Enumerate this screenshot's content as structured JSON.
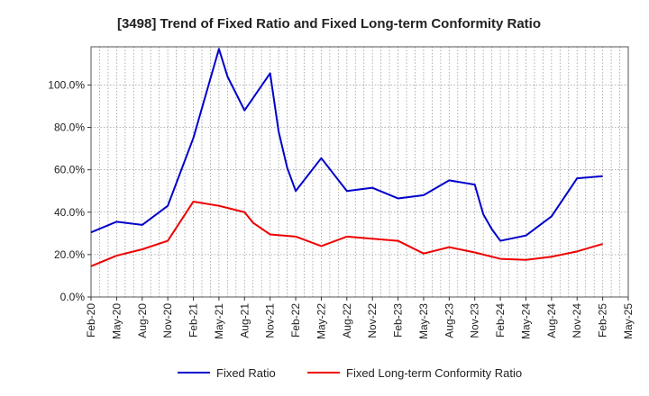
{
  "chart_data": {
    "type": "line",
    "title": "[3498]  Trend of Fixed Ratio and Fixed Long-term Conformity Ratio",
    "xlabel": "",
    "ylabel": "",
    "x_ticks": [
      "Feb-20",
      "May-20",
      "Aug-20",
      "Nov-20",
      "Feb-21",
      "May-21",
      "Aug-21",
      "Nov-21",
      "Feb-22",
      "May-22",
      "Aug-22",
      "Nov-22",
      "Feb-23",
      "May-23",
      "Aug-23",
      "Nov-23",
      "Feb-24",
      "May-24",
      "Aug-24",
      "Nov-24",
      "Feb-25",
      "May-25"
    ],
    "y_ticks": [
      "0.0%",
      "20.0%",
      "40.0%",
      "60.0%",
      "80.0%",
      "100.0%"
    ],
    "ylim": [
      0,
      118
    ],
    "grid": true,
    "legend_position": "bottom",
    "series": [
      {
        "name": "Fixed Ratio",
        "color": "#0000cc",
        "x": [
          "2020-02",
          "2020-05",
          "2020-08",
          "2020-11",
          "2021-02",
          "2021-05",
          "2021-06",
          "2021-08",
          "2021-11",
          "2021-12",
          "2022-01",
          "2022-02",
          "2022-05",
          "2022-08",
          "2022-11",
          "2023-02",
          "2023-05",
          "2023-08",
          "2023-11",
          "2023-12",
          "2024-01",
          "2024-02",
          "2024-05",
          "2024-08",
          "2024-11",
          "2025-02"
        ],
        "values": [
          30.5,
          35.5,
          34.0,
          43.0,
          75.0,
          117.0,
          104.0,
          88.0,
          105.5,
          78.0,
          61.0,
          50.0,
          65.5,
          50.0,
          51.5,
          46.5,
          48.0,
          55.0,
          53.0,
          39.0,
          32.0,
          26.5,
          29.0,
          38.0,
          56.0,
          57.0
        ]
      },
      {
        "name": "Fixed Long-term Conformity Ratio",
        "color": "#ee0000",
        "x": [
          "2020-02",
          "2020-05",
          "2020-08",
          "2020-11",
          "2021-02",
          "2021-05",
          "2021-08",
          "2021-09",
          "2021-11",
          "2022-02",
          "2022-05",
          "2022-08",
          "2022-11",
          "2023-02",
          "2023-05",
          "2023-08",
          "2023-11",
          "2024-02",
          "2024-05",
          "2024-08",
          "2024-11",
          "2025-02"
        ],
        "values": [
          14.5,
          19.5,
          22.5,
          26.5,
          45.0,
          43.0,
          40.0,
          35.0,
          29.5,
          28.5,
          24.0,
          28.5,
          27.5,
          26.5,
          20.5,
          23.5,
          21.0,
          18.0,
          17.5,
          19.0,
          21.5,
          25.0
        ]
      }
    ]
  }
}
